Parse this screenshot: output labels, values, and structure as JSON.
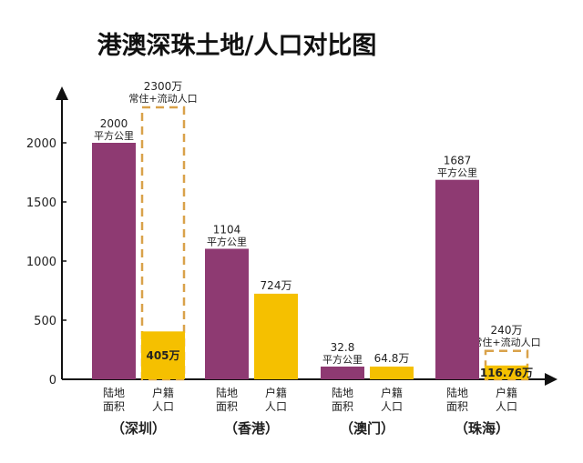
{
  "chart_data": {
    "type": "bar",
    "title": "港澳深珠土地/人口对比图",
    "ylim": [
      0,
      2300
    ],
    "yticks": [
      0,
      500,
      1000,
      1500,
      2000
    ],
    "colors": {
      "land": "#8e3a72",
      "population": "#f5c000",
      "dashed": "#d9a24a"
    },
    "sub_labels": {
      "land": [
        "陆地",
        "面积"
      ],
      "population": [
        "户籍",
        "人口"
      ]
    },
    "groups": [
      {
        "name": "（深圳）",
        "land": 2000,
        "land_label": [
          "2000",
          "平方公里"
        ],
        "population": 405,
        "population_label": "405万",
        "total_population": 2300,
        "total_label": [
          "2300万",
          "常住+流动人口"
        ]
      },
      {
        "name": "（香港）",
        "land": 1104,
        "land_label": [
          "1104",
          "平方公里"
        ],
        "population": 724,
        "population_label": "724万"
      },
      {
        "name": "（澳门）",
        "land": 32.8,
        "land_label": [
          "32.8",
          "平方公里"
        ],
        "population": 64.8,
        "population_label": "64.8万"
      },
      {
        "name": "（珠海）",
        "land": 1687,
        "land_label": [
          "1687",
          "平方公里"
        ],
        "population": 116.76,
        "population_label": "116.76万",
        "total_population": 240,
        "total_label": [
          "240万",
          "常住+流动人口"
        ]
      }
    ]
  }
}
